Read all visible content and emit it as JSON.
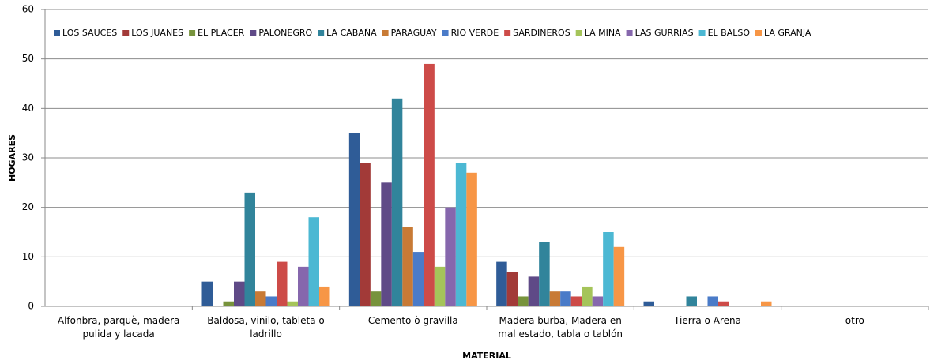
{
  "chart_data": {
    "type": "bar",
    "y_label": "HOGARES",
    "x_label": "MATERIAL",
    "categories": [
      "Alfonbra, parquè, madera pulida y lacada",
      "Baldosa, vinilo, tableta o ladrillo",
      "Cemento ò gravilla",
      "Madera burba, Madera en mal estado, tabla o tablón",
      "Tierra o Arena",
      "otro"
    ],
    "series": [
      {
        "name": "LOS SAUCES",
        "color": "#2f5c97",
        "values": [
          0,
          5,
          35,
          9,
          1,
          0
        ]
      },
      {
        "name": "LOS JUANES",
        "color": "#a23a38",
        "values": [
          0,
          0,
          29,
          7,
          0,
          0
        ]
      },
      {
        "name": "EL PLACER",
        "color": "#77933c",
        "values": [
          0,
          1,
          3,
          2,
          0,
          0
        ]
      },
      {
        "name": "PALONEGRO",
        "color": "#5f4a87",
        "values": [
          0,
          5,
          25,
          6,
          0,
          0
        ]
      },
      {
        "name": "LA CABAÑA",
        "color": "#31849b",
        "values": [
          0,
          23,
          42,
          13,
          2,
          0
        ]
      },
      {
        "name": "PARAGUAY",
        "color": "#c87a35",
        "values": [
          0,
          3,
          16,
          3,
          0,
          0
        ]
      },
      {
        "name": "RIO VERDE",
        "color": "#4a7bc8",
        "values": [
          0,
          2,
          11,
          3,
          2,
          0
        ]
      },
      {
        "name": "SARDINEROS",
        "color": "#cd4b48",
        "values": [
          0,
          9,
          49,
          2,
          1,
          0
        ]
      },
      {
        "name": "LA MINA",
        "color": "#a5c45a",
        "values": [
          0,
          1,
          8,
          4,
          0,
          0
        ]
      },
      {
        "name": "LAS GURRIAS",
        "color": "#8667ad",
        "values": [
          0,
          8,
          20,
          2,
          0,
          0
        ]
      },
      {
        "name": "EL BALSO",
        "color": "#4cb8d3",
        "values": [
          0,
          18,
          29,
          15,
          0,
          0
        ]
      },
      {
        "name": "LA GRANJA",
        "color": "#f79646",
        "values": [
          0,
          4,
          27,
          12,
          1,
          0
        ]
      }
    ],
    "ylim": [
      0,
      60
    ],
    "yticks": [
      0,
      10,
      20,
      30,
      40,
      50,
      60
    ],
    "grid": true,
    "legend": "top"
  }
}
